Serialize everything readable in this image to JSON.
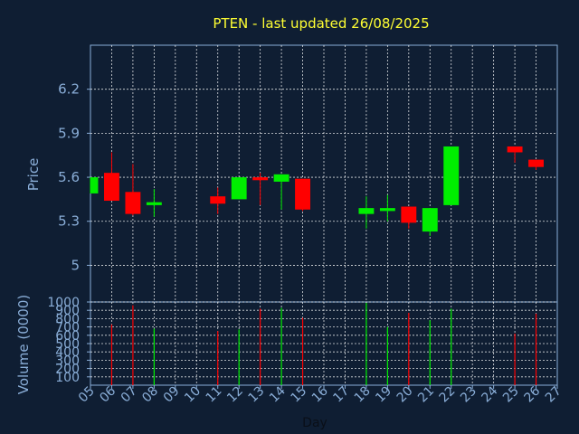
{
  "chart_data": [
    {
      "type": "candlestick",
      "title": "PTEN - last updated 26/08/2025",
      "ylabel": "Price",
      "ylim": [
        4.75,
        6.5
      ],
      "yticks": [
        "5",
        "5.3",
        "5.6",
        "5.9",
        "6.2"
      ],
      "grid": true,
      "colors": {
        "up": "#00ee00",
        "down": "#ff0000"
      },
      "days": [
        "05",
        "06",
        "07",
        "08",
        "09",
        "10",
        "11",
        "12",
        "13",
        "14",
        "15",
        "16",
        "17",
        "18",
        "19",
        "20",
        "21",
        "22",
        "23",
        "24",
        "25",
        "26",
        "27"
      ],
      "candles": [
        {
          "day": "05",
          "open": 5.49,
          "close": 5.6,
          "high": 5.6,
          "low": 5.49
        },
        {
          "day": "06",
          "open": 5.63,
          "close": 5.44,
          "high": 5.77,
          "low": 5.44
        },
        {
          "day": "07",
          "open": 5.5,
          "close": 5.35,
          "high": 5.69,
          "low": 5.34
        },
        {
          "day": "08",
          "open": 5.41,
          "close": 5.43,
          "high": 5.52,
          "low": 5.33
        },
        {
          "day": "11",
          "open": 5.47,
          "close": 5.42,
          "high": 5.53,
          "low": 5.35
        },
        {
          "day": "12",
          "open": 5.45,
          "close": 5.6,
          "high": 5.6,
          "low": 5.45
        },
        {
          "day": "13",
          "open": 5.6,
          "close": 5.58,
          "high": 5.63,
          "low": 5.41
        },
        {
          "day": "14",
          "open": 5.57,
          "close": 5.62,
          "high": 5.62,
          "low": 5.38
        },
        {
          "day": "15",
          "open": 5.59,
          "close": 5.38,
          "high": 5.59,
          "low": 5.37
        },
        {
          "day": "18",
          "open": 5.35,
          "close": 5.39,
          "high": 5.47,
          "low": 5.25
        },
        {
          "day": "19",
          "open": 5.37,
          "close": 5.39,
          "high": 5.48,
          "low": 5.3
        },
        {
          "day": "20",
          "open": 5.4,
          "close": 5.29,
          "high": 5.4,
          "low": 5.25
        },
        {
          "day": "21",
          "open": 5.23,
          "close": 5.39,
          "high": 5.39,
          "low": 5.2
        },
        {
          "day": "22",
          "open": 5.41,
          "close": 5.81,
          "high": 5.81,
          "low": 5.41
        },
        {
          "day": "25",
          "open": 5.81,
          "close": 5.77,
          "high": 5.81,
          "low": 5.7
        },
        {
          "day": "26",
          "open": 5.72,
          "close": 5.67,
          "high": 5.72,
          "low": 5.65
        }
      ]
    },
    {
      "type": "bar",
      "ylabel": "Volume (0000)",
      "xlabel": "Day",
      "ylim": [
        0,
        1000
      ],
      "yticks": [
        "100",
        "200",
        "300",
        "400",
        "500",
        "600",
        "700",
        "800",
        "900",
        "1000"
      ],
      "volumes": [
        {
          "day": "06",
          "value": 730,
          "dir": "down"
        },
        {
          "day": "07",
          "value": 960,
          "dir": "down"
        },
        {
          "day": "08",
          "value": 680,
          "dir": "up"
        },
        {
          "day": "11",
          "value": 650,
          "dir": "down"
        },
        {
          "day": "12",
          "value": 670,
          "dir": "up"
        },
        {
          "day": "13",
          "value": 920,
          "dir": "down"
        },
        {
          "day": "14",
          "value": 930,
          "dir": "up"
        },
        {
          "day": "15",
          "value": 810,
          "dir": "down"
        },
        {
          "day": "18",
          "value": 990,
          "dir": "up"
        },
        {
          "day": "19",
          "value": 700,
          "dir": "up"
        },
        {
          "day": "20",
          "value": 870,
          "dir": "down"
        },
        {
          "day": "21",
          "value": 780,
          "dir": "up"
        },
        {
          "day": "22",
          "value": 920,
          "dir": "up"
        },
        {
          "day": "25",
          "value": 620,
          "dir": "down"
        },
        {
          "day": "26",
          "value": 860,
          "dir": "down"
        }
      ]
    }
  ]
}
